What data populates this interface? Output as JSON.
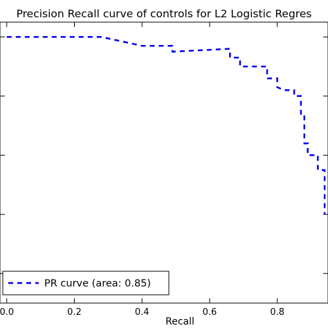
{
  "chart_data": {
    "type": "line",
    "title": "Precision Recall curve of controls for L2 Logistic Regres",
    "xlabel": "Recall",
    "ylabel": "",
    "xlim": [
      -0.02,
      0.95
    ],
    "ylim": [
      0.1,
      1.05
    ],
    "xticks": [
      0.0,
      0.2,
      0.4,
      0.6,
      0.8
    ],
    "xtick_labels": [
      "0.0",
      "0.2",
      "0.4",
      "0.6",
      "0.8"
    ],
    "yticks": [
      0.2,
      0.4,
      0.6,
      0.8,
      1.0
    ],
    "grid": false,
    "legend_position": "lower-left",
    "series": [
      {
        "name": "PR curve (area: 0.85)",
        "color": "#0000ee",
        "line_style": "dashed",
        "x": [
          0.0,
          0.28,
          0.4,
          0.49,
          0.49,
          0.66,
          0.66,
          0.69,
          0.69,
          0.75,
          0.77,
          0.77,
          0.8,
          0.8,
          0.82,
          0.85,
          0.85,
          0.87,
          0.87,
          0.88,
          0.88,
          0.89,
          0.89,
          0.92,
          0.92,
          0.94,
          0.94
        ],
        "y": [
          1.0,
          1.0,
          0.97,
          0.97,
          0.95,
          0.96,
          0.93,
          0.93,
          0.9,
          0.9,
          0.9,
          0.86,
          0.86,
          0.83,
          0.82,
          0.82,
          0.8,
          0.8,
          0.74,
          0.74,
          0.64,
          0.64,
          0.6,
          0.6,
          0.55,
          0.55,
          0.4
        ]
      }
    ]
  }
}
